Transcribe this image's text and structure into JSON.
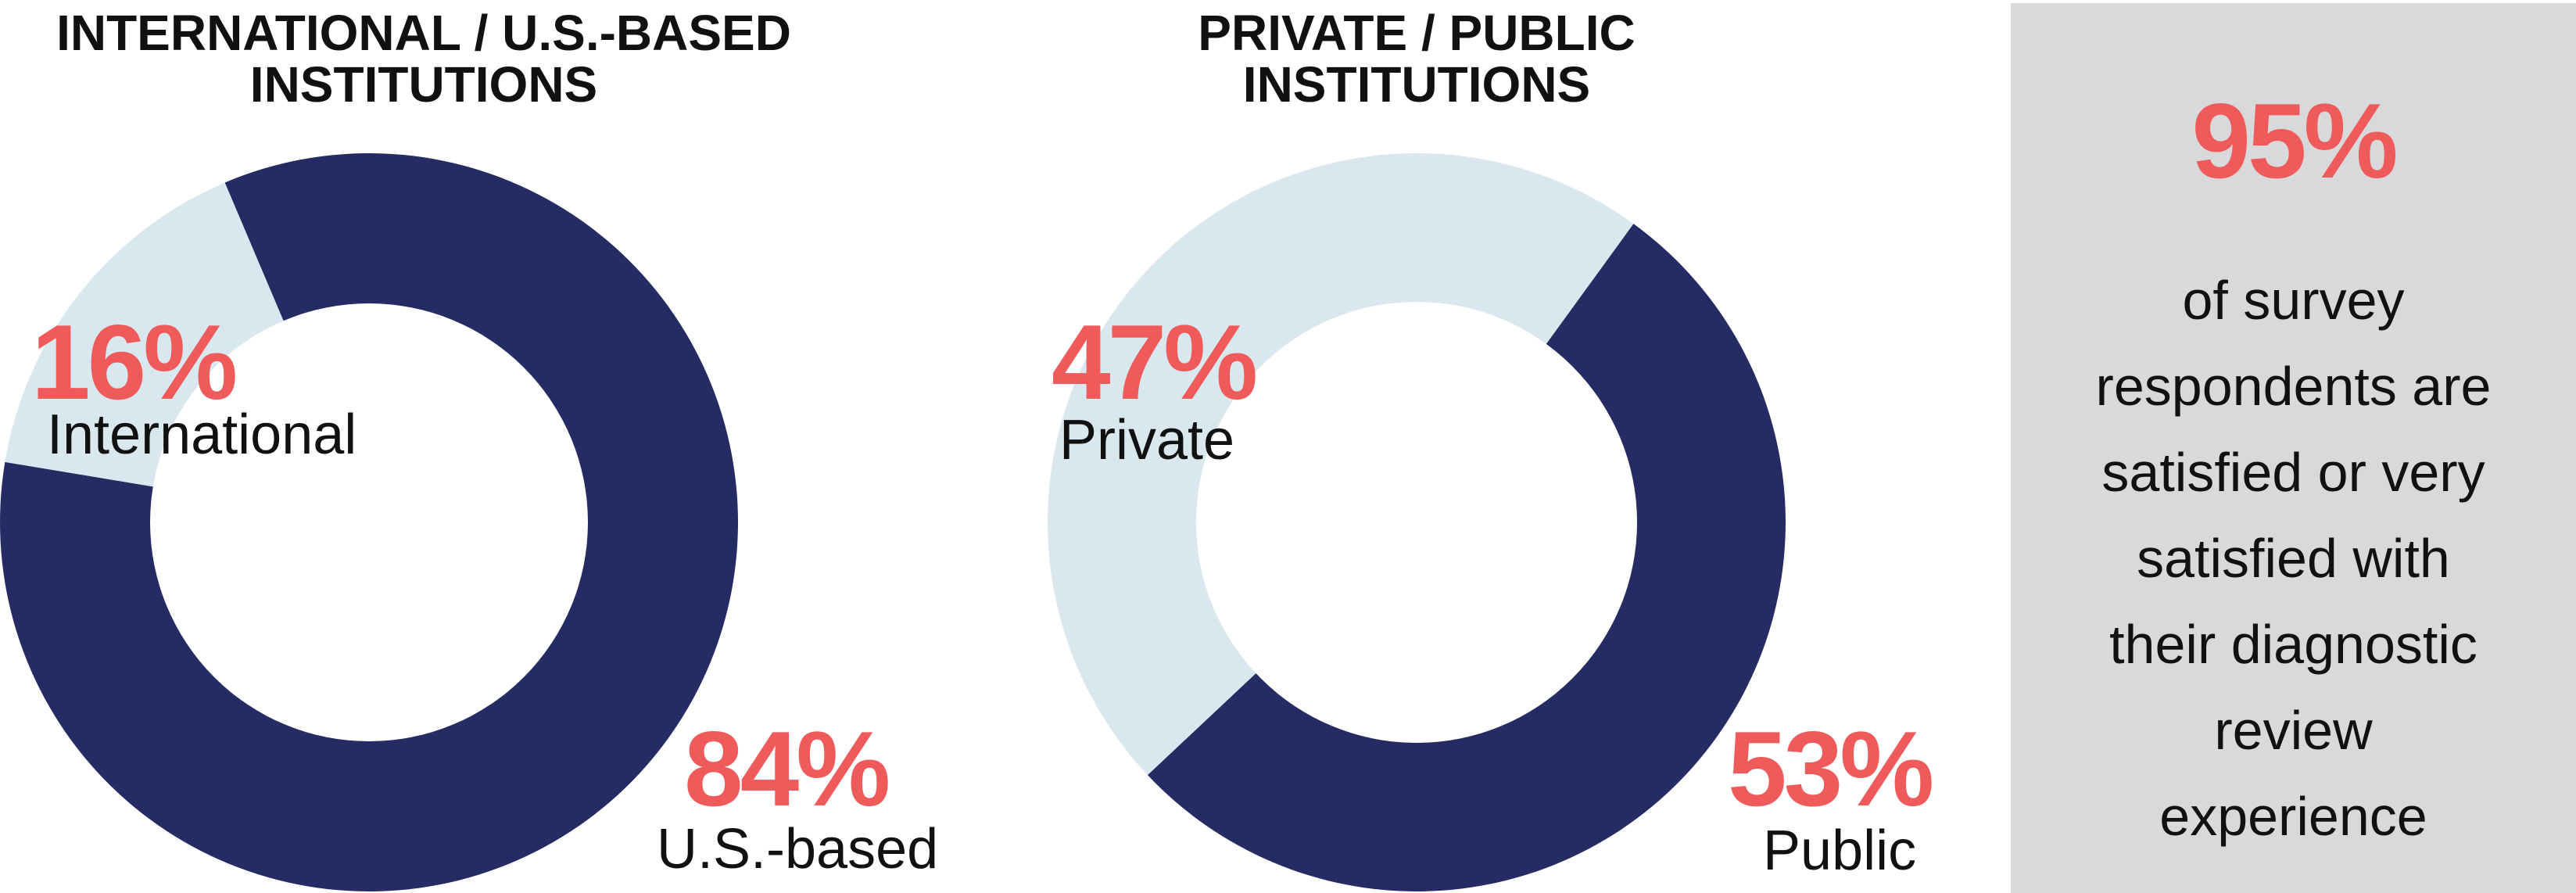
{
  "chart_data": [
    {
      "type": "pie",
      "title": "INTERNATIONAL / U.S.-BASED INSTITUTIONS",
      "title_lines": [
        "INTERNATIONAL / U.S.-BASED",
        "INSTITUTIONS"
      ],
      "slices": [
        {
          "label": "International",
          "value": 16,
          "value_label": "16%",
          "color": "#d9e8ef"
        },
        {
          "label": "U.S.-based",
          "value": 84,
          "value_label": "84%",
          "color": "#242c63"
        }
      ]
    },
    {
      "type": "pie",
      "title": "PRIVATE / PUBLIC INSTITUTIONS",
      "title_lines": [
        "PRIVATE / PUBLIC",
        "INSTITUTIONS"
      ],
      "slices": [
        {
          "label": "Private",
          "value": 47,
          "value_label": "47%",
          "color": "#d9e8ef"
        },
        {
          "label": "Public",
          "value": 53,
          "value_label": "53%",
          "color": "#242c63"
        }
      ]
    }
  ],
  "stat": {
    "value": "95%",
    "lines": [
      "of survey",
      "respondents are",
      "satisfied or very",
      "satisfied with",
      "their diagnostic",
      "review",
      "experience"
    ]
  },
  "colors": {
    "accent": "#ef5a5b",
    "dark": "#242c63",
    "light": "#d9e8ef",
    "panel": "#d9d9db"
  }
}
